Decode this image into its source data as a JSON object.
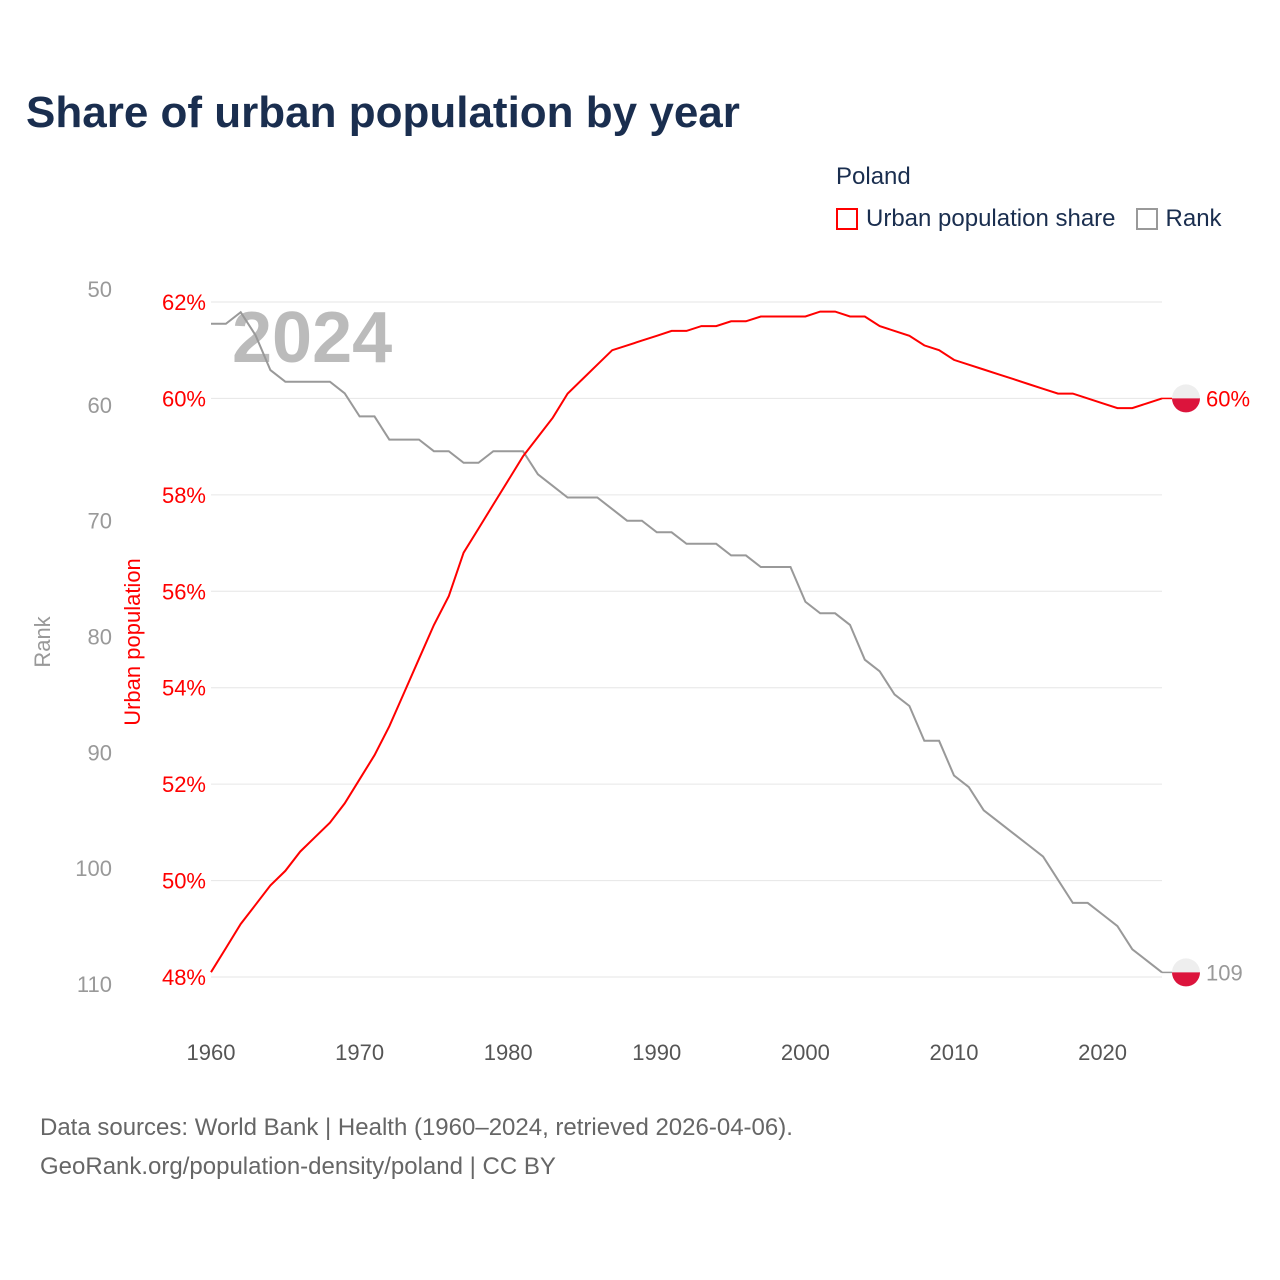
{
  "title": "Share of urban population by year",
  "legend": {
    "title": "Poland",
    "items": [
      {
        "label": "Urban population share",
        "color": "#ff0000"
      },
      {
        "label": "Rank",
        "color": "#999999"
      }
    ]
  },
  "footer": {
    "line1": "Data sources: World Bank | Health (1960–2024, retrieved 2026-04-06).",
    "line2": "GeoRank.org/population-density/poland | CC BY"
  },
  "chart_data": {
    "type": "line",
    "title": "Share of urban population by year",
    "year_label": "2024",
    "xlabel": "",
    "x_ticks": [
      "1960",
      "1970",
      "1980",
      "1990",
      "2000",
      "2010",
      "2020"
    ],
    "xlim": [
      1960,
      2024
    ],
    "y_left_outer": {
      "label": "Rank",
      "ticks": [
        "50",
        "60",
        "70",
        "80",
        "90",
        "100",
        "110"
      ],
      "range": [
        50,
        110
      ],
      "inverted": true
    },
    "y_left_inner": {
      "label": "Urban population",
      "ticks": [
        "62%",
        "60%",
        "58%",
        "56%",
        "54%",
        "52%",
        "50%",
        "48%"
      ],
      "range": [
        48,
        62
      ]
    },
    "grid": true,
    "legend_position": "top-right",
    "x": [
      1960,
      1961,
      1962,
      1963,
      1964,
      1965,
      1966,
      1967,
      1968,
      1969,
      1970,
      1971,
      1972,
      1973,
      1974,
      1975,
      1976,
      1977,
      1978,
      1979,
      1980,
      1981,
      1982,
      1983,
      1984,
      1985,
      1986,
      1987,
      1988,
      1989,
      1990,
      1991,
      1992,
      1993,
      1994,
      1995,
      1996,
      1997,
      1998,
      1999,
      2000,
      2001,
      2002,
      2003,
      2004,
      2005,
      2006,
      2007,
      2008,
      2009,
      2010,
      2011,
      2012,
      2013,
      2014,
      2015,
      2016,
      2017,
      2018,
      2019,
      2020,
      2021,
      2022,
      2023,
      2024
    ],
    "series": [
      {
        "name": "Urban population share",
        "color": "#ff0000",
        "end_label": "60%",
        "values": [
          48.1,
          48.6,
          49.1,
          49.5,
          49.9,
          50.2,
          50.6,
          50.9,
          51.2,
          51.6,
          52.1,
          52.6,
          53.2,
          53.9,
          54.6,
          55.3,
          55.9,
          56.8,
          57.3,
          57.8,
          58.3,
          58.8,
          59.2,
          59.6,
          60.1,
          60.4,
          60.7,
          61.0,
          61.1,
          61.2,
          61.3,
          61.4,
          61.4,
          61.5,
          61.5,
          61.6,
          61.6,
          61.7,
          61.7,
          61.7,
          61.7,
          61.8,
          61.8,
          61.7,
          61.7,
          61.5,
          61.4,
          61.3,
          61.1,
          61.0,
          60.8,
          60.7,
          60.6,
          60.5,
          60.4,
          60.3,
          60.2,
          60.1,
          60.1,
          60.0,
          59.9,
          59.8,
          59.8,
          59.9,
          60.0
        ]
      },
      {
        "name": "Rank",
        "color": "#999999",
        "end_label": "109",
        "values": [
          53,
          53,
          52,
          54,
          57,
          58,
          58,
          58,
          58,
          59,
          61,
          61,
          63,
          63,
          63,
          64,
          64,
          65,
          65,
          64,
          64,
          64,
          66,
          67,
          68,
          68,
          68,
          69,
          70,
          70,
          71,
          71,
          72,
          72,
          72,
          73,
          73,
          74,
          74,
          74,
          77,
          78,
          78,
          79,
          82,
          83,
          85,
          86,
          89,
          89,
          92,
          93,
          95,
          96,
          97,
          98,
          99,
          101,
          103,
          103,
          104,
          105,
          107,
          108,
          109
        ]
      }
    ]
  }
}
